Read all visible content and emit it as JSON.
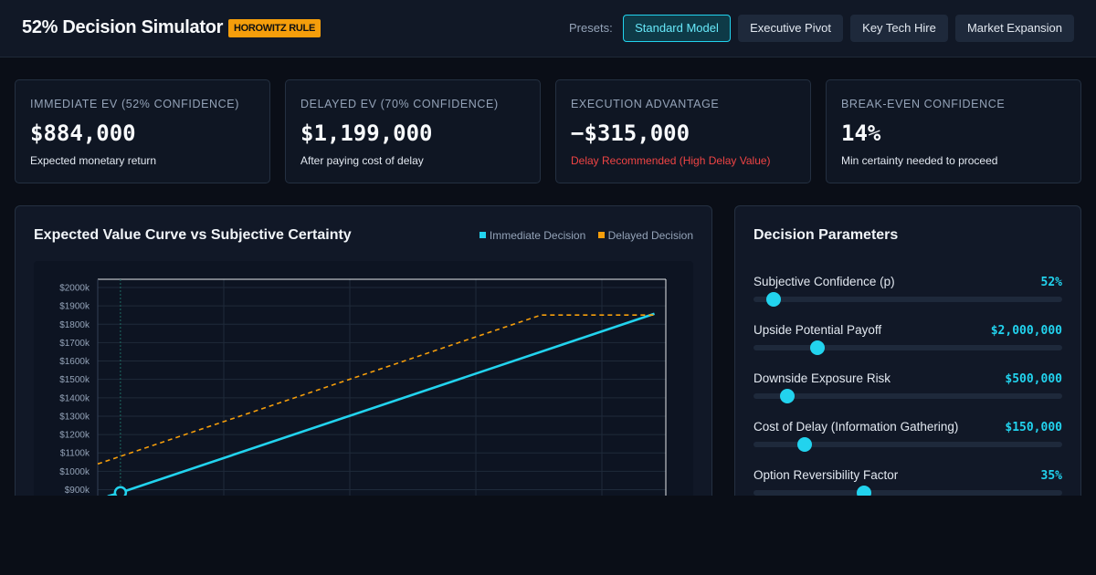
{
  "header": {
    "title": "52% Decision Simulator",
    "badge": "HOROWITZ RULE",
    "presets_label": "Presets:",
    "presets": [
      {
        "label": "Standard Model",
        "active": true
      },
      {
        "label": "Executive Pivot",
        "active": false
      },
      {
        "label": "Key Tech Hire",
        "active": false
      },
      {
        "label": "Market Expansion",
        "active": false
      }
    ]
  },
  "kpis": [
    {
      "label": "IMMEDIATE EV (52% CONFIDENCE)",
      "value": "$884,000",
      "sub": "Expected monetary return"
    },
    {
      "label": "DELAYED EV (70% CONFIDENCE)",
      "value": "$1,199,000",
      "sub": "After paying cost of delay"
    },
    {
      "label": "EXECUTION ADVANTAGE",
      "value": "−$315,000",
      "sub": "Delay Recommended (High Delay Value)"
    },
    {
      "label": "BREAK-EVEN CONFIDENCE",
      "value": "14%",
      "sub": "Min certainty needed to proceed"
    }
  ],
  "chart": {
    "title": "Expected Value Curve vs Subjective Certainty",
    "legend": [
      {
        "label": "Immediate Decision",
        "color": "#22d3ee"
      },
      {
        "label": "Delayed Decision",
        "color": "#f59e0b"
      }
    ]
  },
  "chart_data": {
    "type": "line",
    "title": "Expected Value Curve vs Subjective Certainty",
    "xlabel": "",
    "ylabel": "",
    "ytick_labels": [
      "$2000k",
      "$1900k",
      "$1800k",
      "$1700k",
      "$1600k",
      "$1500k",
      "$1400k",
      "$1300k",
      "$1200k",
      "$1100k",
      "$1000k",
      "$900k"
    ],
    "ylim": [
      900,
      2000
    ],
    "xlim": [
      0.5,
      1.0
    ],
    "series": [
      {
        "name": "Immediate Decision",
        "color": "#22d3ee",
        "style": "solid",
        "x": [
          0.52,
          0.99
        ],
        "y": [
          884,
          1857
        ]
      },
      {
        "name": "Delayed Decision",
        "color": "#f59e0b",
        "style": "dashed",
        "x": [
          0.5,
          0.89,
          0.99
        ],
        "y": [
          1040,
          1850,
          1850
        ]
      }
    ],
    "marker": {
      "x": 0.52,
      "y": 884
    },
    "grid": true
  },
  "params": {
    "title": "Decision Parameters",
    "items": [
      {
        "label": "Subjective Confidence (p)",
        "value": "52%",
        "level": 0.065
      },
      {
        "label": "Upside Potential Payoff",
        "value": "$2,000,000",
        "level": 0.207
      },
      {
        "label": "Downside Exposure Risk",
        "value": "$500,000",
        "level": 0.109
      },
      {
        "label": "Cost of Delay (Information Gathering)",
        "value": "$150,000",
        "level": 0.166
      },
      {
        "label": "Option Reversibility Factor",
        "value": "35%",
        "level": 0.358
      }
    ]
  }
}
